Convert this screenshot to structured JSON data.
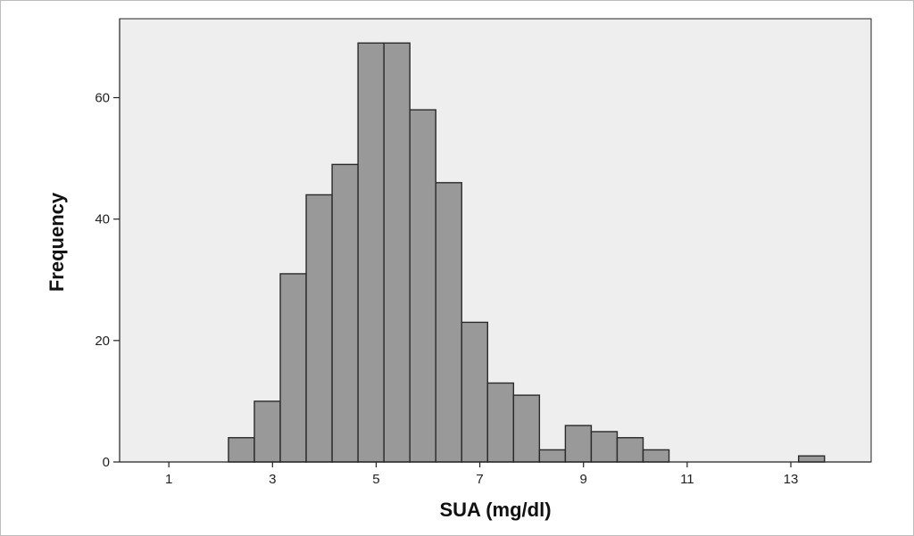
{
  "chart_data": {
    "type": "bar",
    "xlabel": "SUA (mg/dl)",
    "ylabel": "Frequency",
    "xlim": [
      0.05,
      14.55
    ],
    "ylim": [
      0,
      73
    ],
    "xticks": [
      1,
      3,
      5,
      7,
      9,
      11,
      13
    ],
    "yticks": [
      0,
      20,
      40,
      60
    ],
    "bin_width": 0.5,
    "bins": [
      {
        "x0": 2.15,
        "value": 4
      },
      {
        "x0": 2.65,
        "value": 10
      },
      {
        "x0": 3.15,
        "value": 31
      },
      {
        "x0": 3.65,
        "value": 44
      },
      {
        "x0": 4.15,
        "value": 49
      },
      {
        "x0": 4.65,
        "value": 69
      },
      {
        "x0": 5.15,
        "value": 69
      },
      {
        "x0": 5.65,
        "value": 58
      },
      {
        "x0": 6.15,
        "value": 46
      },
      {
        "x0": 6.65,
        "value": 23
      },
      {
        "x0": 7.15,
        "value": 13
      },
      {
        "x0": 7.65,
        "value": 11
      },
      {
        "x0": 8.15,
        "value": 2
      },
      {
        "x0": 8.65,
        "value": 6
      },
      {
        "x0": 9.15,
        "value": 5
      },
      {
        "x0": 9.65,
        "value": 4
      },
      {
        "x0": 10.15,
        "value": 2
      },
      {
        "x0": 13.15,
        "value": 1
      }
    ],
    "grid": false,
    "colors": {
      "plot_background": "#eeeeee",
      "bar_fill": "#999999",
      "bar_stroke": "#2a2a2a",
      "axis": "#222222"
    }
  }
}
